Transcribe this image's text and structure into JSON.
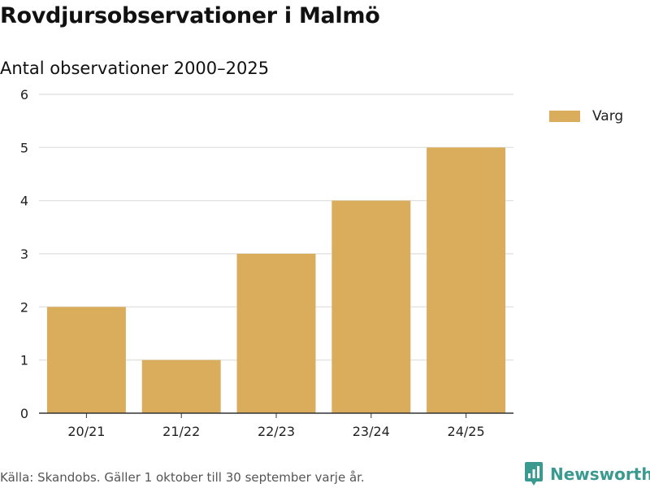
{
  "header": {
    "title": "Rovdjursobservationer i Malmö",
    "subtitle": "Antal observationer 2000–2025"
  },
  "chart_data": {
    "type": "bar",
    "title": "Rovdjursobservationer i Malmö",
    "subtitle": "Antal observationer 2000–2025",
    "categories": [
      "20/21",
      "21/22",
      "22/23",
      "23/24",
      "24/25"
    ],
    "series": [
      {
        "name": "Varg",
        "values": [
          2,
          1,
          3,
          4,
          5
        ],
        "color": "#d9ad5b"
      }
    ],
    "xlabel": "",
    "ylabel": "",
    "ylim": [
      0,
      6
    ],
    "yticks": [
      0,
      1,
      2,
      3,
      4,
      5,
      6
    ],
    "grid": true,
    "legend": "top-right"
  },
  "legend": {
    "label": "Varg",
    "color": "#d9ad5b"
  },
  "footer": {
    "source": "Källa: Skandobs. Gäller 1 oktober till 30 september varje år.",
    "brand": "Newsworthy",
    "brand_color": "#3a9a8f"
  }
}
